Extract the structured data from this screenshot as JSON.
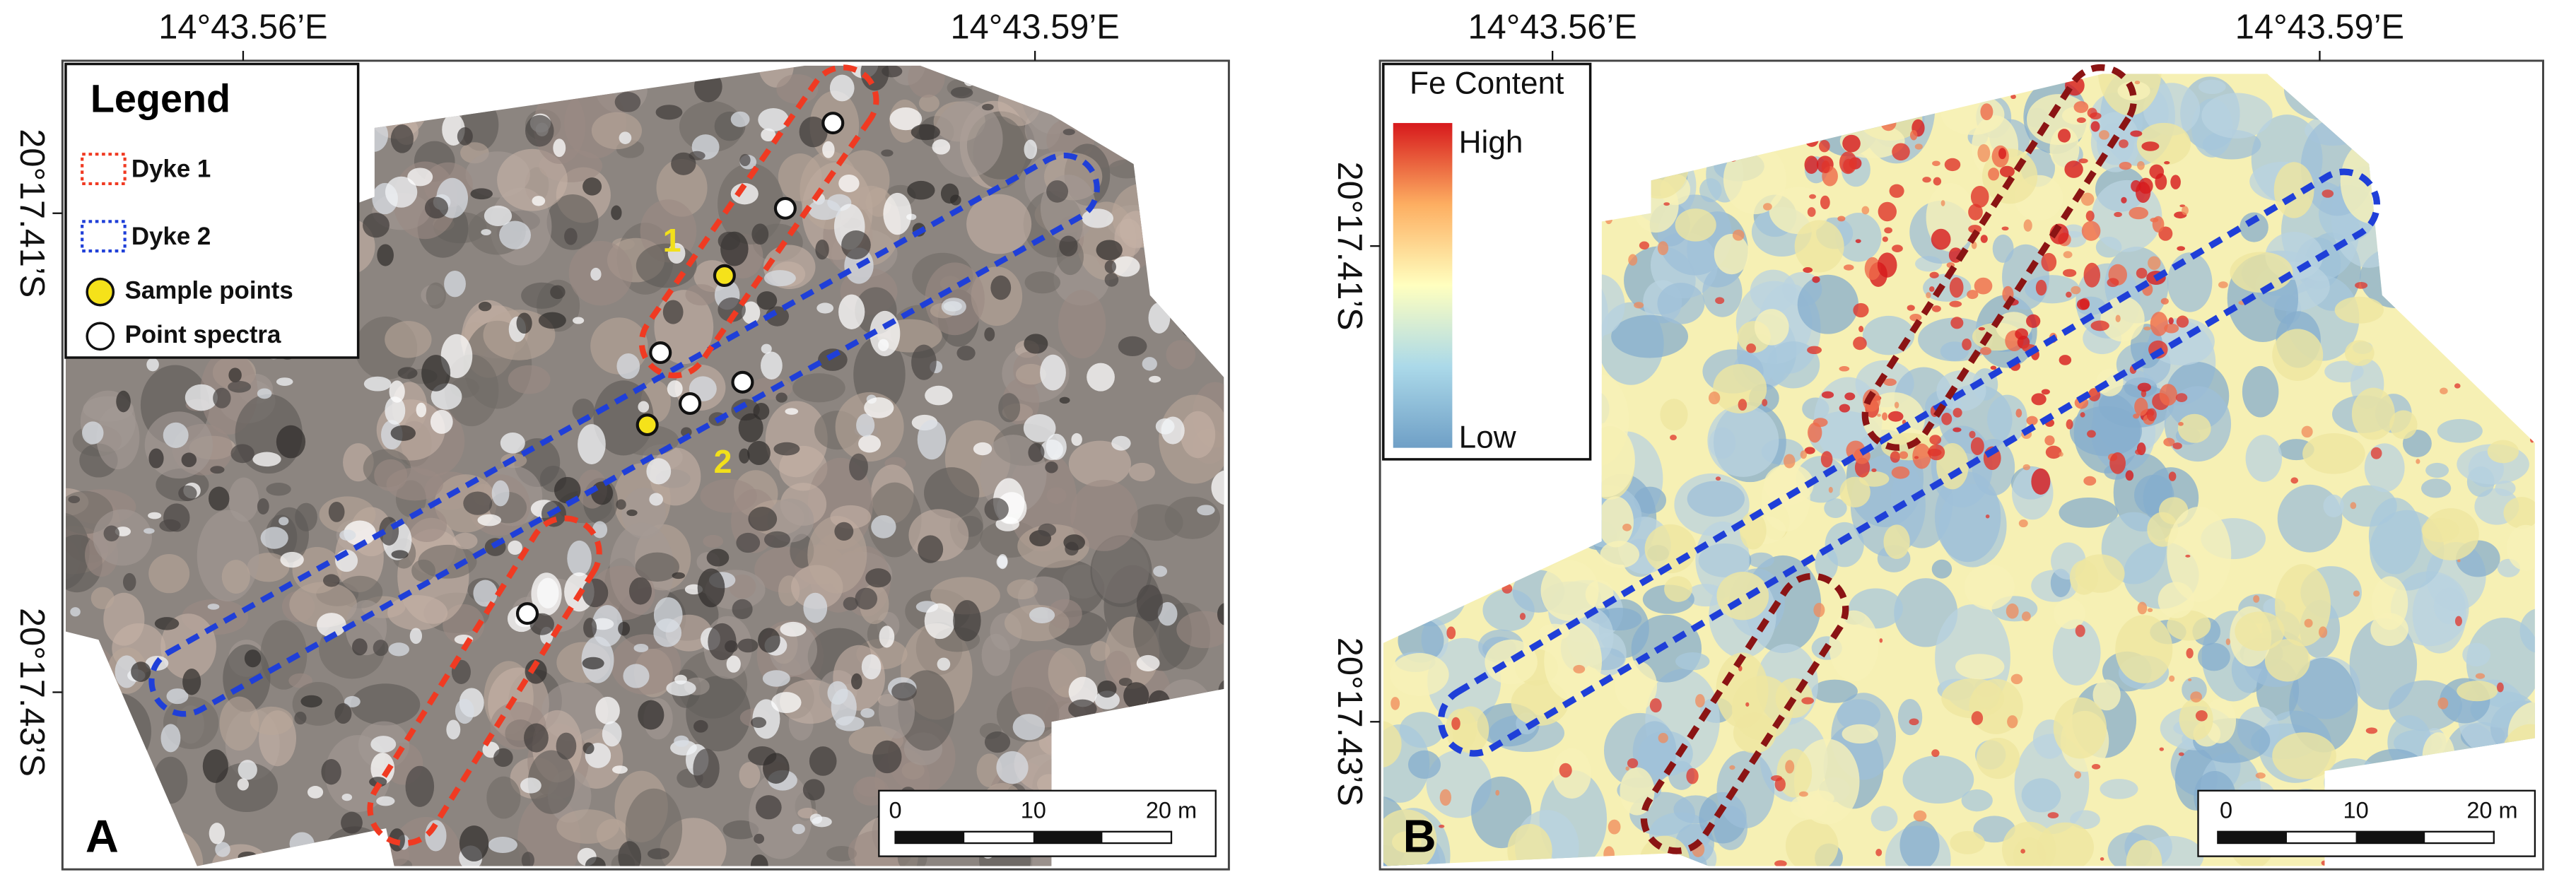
{
  "panels": [
    {
      "label": "A",
      "top_labels": [
        "14°43.56’E",
        "14°43.59’E"
      ],
      "left_labels": [
        "20°17.41’S",
        "20°17.43’S"
      ],
      "legend": {
        "title": "Legend",
        "items": [
          "Dyke 1",
          "Dyke 2",
          "Sample points",
          "Point spectra"
        ]
      },
      "point_labels": [
        "1",
        "2"
      ],
      "scale_bar": [
        "0",
        "10",
        "20 m"
      ]
    },
    {
      "label": "B",
      "top_labels": [
        "14°43.56’E",
        "14°43.59’E"
      ],
      "left_labels": [
        "20°17.41’S",
        "20°17.43’S"
      ],
      "legend": {
        "title": "Fe Content",
        "high": "High",
        "low": "Low"
      },
      "scale_bar": [
        "0",
        "10",
        "20 m"
      ]
    }
  ]
}
